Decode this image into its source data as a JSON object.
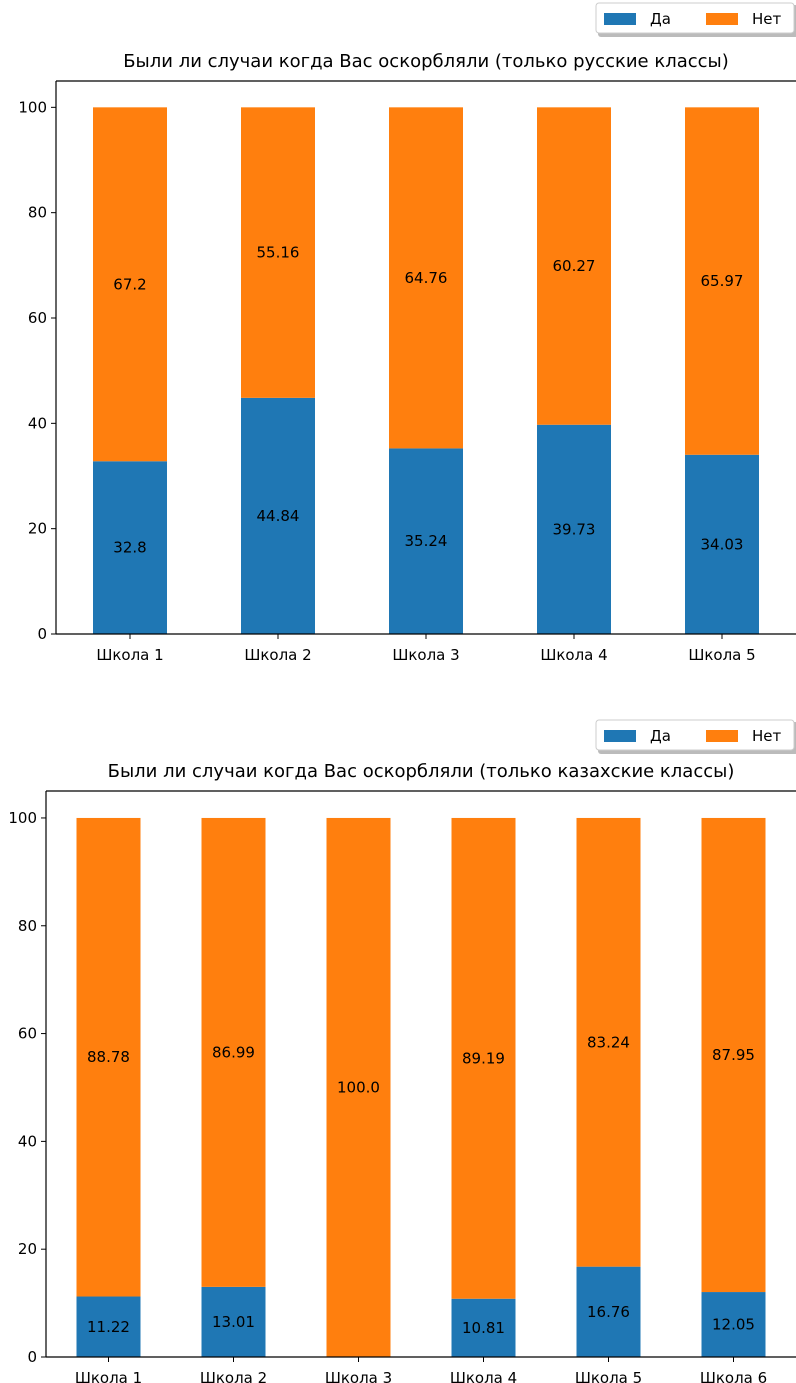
{
  "chart_data": [
    {
      "type": "bar",
      "stacked": true,
      "title": "Были ли случаи когда Вас оскорбляли (только русские классы)",
      "xlabel": "",
      "ylabel": "",
      "categories": [
        "Школа 1",
        "Школа 2",
        "Школа 3",
        "Школа 4",
        "Школа 5"
      ],
      "series": [
        {
          "name": "Да",
          "color": "#1f77b4",
          "values": [
            32.8,
            44.84,
            35.24,
            39.73,
            34.03
          ],
          "labels": [
            "32.8",
            "44.84",
            "35.24",
            "39.73",
            "34.03"
          ]
        },
        {
          "name": "Нет",
          "color": "#ff7f0e",
          "values": [
            67.2,
            55.16,
            64.76,
            60.27,
            65.97
          ],
          "labels": [
            "67.2",
            "55.16",
            "64.76",
            "60.27",
            "65.97"
          ]
        }
      ],
      "yticks": [
        "0",
        "20",
        "40",
        "60",
        "80",
        "100"
      ],
      "ylim": [
        0,
        105
      ],
      "grid": false,
      "legend_position": "top-right"
    },
    {
      "type": "bar",
      "stacked": true,
      "title": "Были ли случаи когда Вас оскорбляли (только казахские классы)",
      "xlabel": "",
      "ylabel": "",
      "categories": [
        "Школа 1",
        "Школа 2",
        "Школа 3",
        "Школа 4",
        "Школа 5",
        "Школа 6"
      ],
      "series": [
        {
          "name": "Да",
          "color": "#1f77b4",
          "values": [
            11.22,
            13.01,
            0,
            10.81,
            16.76,
            12.05
          ],
          "labels": [
            "11.22",
            "13.01",
            "",
            "10.81",
            "16.76",
            "12.05"
          ]
        },
        {
          "name": "Нет",
          "color": "#ff7f0e",
          "values": [
            88.78,
            86.99,
            100.0,
            89.19,
            83.24,
            87.95
          ],
          "labels": [
            "88.78",
            "86.99",
            "100.0",
            "89.19",
            "83.24",
            "87.95"
          ]
        }
      ],
      "yticks": [
        "0",
        "20",
        "40",
        "60",
        "80",
        "100"
      ],
      "ylim": [
        0,
        105
      ],
      "grid": false,
      "legend_position": "top-right"
    }
  ]
}
